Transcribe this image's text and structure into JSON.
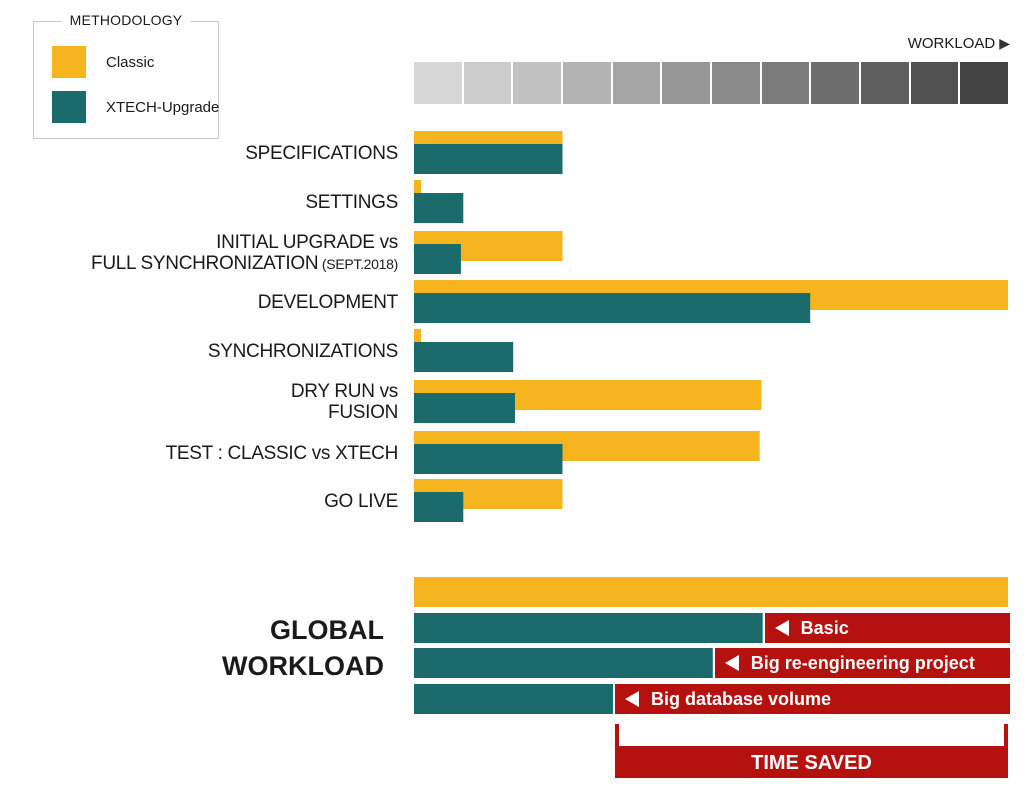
{
  "legend": {
    "title": "METHODOLOGY",
    "items": [
      {
        "label": "Classic",
        "color": "#f6b51e"
      },
      {
        "label": "XTECH-Upgrade",
        "color": "#1b6a6c"
      }
    ]
  },
  "workload_axis": {
    "label": "WORKLOAD",
    "arrow_icon": "arrow-right-icon",
    "gradient_colors": [
      "#d7d7d7",
      "#cccccc",
      "#c1c1c1",
      "#b3b3b3",
      "#a5a5a5",
      "#979797",
      "#898989",
      "#7b7b7b",
      "#6d6d6d",
      "#5f5f5f",
      "#515151",
      "#434343"
    ]
  },
  "chart_data": {
    "type": "bar",
    "orientation": "horizontal",
    "x_axis_label": "WORKLOAD",
    "value_scale": "relative workload (Classic development = 100)",
    "categories": [
      {
        "id": "specifications",
        "lines": [
          "SPECIFICATIONS"
        ]
      },
      {
        "id": "settings",
        "lines": [
          "SETTINGS"
        ]
      },
      {
        "id": "initial-upgrade",
        "lines": [
          "INITIAL UPGRADE vs",
          "FULL SYNCHRONIZATION (SEPT.2018)"
        ]
      },
      {
        "id": "development",
        "lines": [
          "DEVELOPMENT"
        ]
      },
      {
        "id": "synchronizations",
        "lines": [
          "SYNCHRONIZATIONS"
        ]
      },
      {
        "id": "dry-run",
        "lines": [
          "DRY RUN vs",
          "FUSION"
        ]
      },
      {
        "id": "test",
        "lines": [
          "TEST : CLASSIC vs XTECH"
        ]
      },
      {
        "id": "go-live",
        "lines": [
          "GO LIVE"
        ]
      }
    ],
    "series": [
      {
        "name": "Classic",
        "color": "#f6b51e",
        "values": [
          25,
          1.2,
          25,
          100,
          1.2,
          58.5,
          58.2,
          25
        ]
      },
      {
        "name": "XTECH-Upgrade",
        "color": "#1b6a6c",
        "values": [
          25,
          8.3,
          7.9,
          66.7,
          16.7,
          17,
          25,
          8.3
        ]
      }
    ],
    "global_workload": {
      "title_lines": [
        "GLOBAL",
        "WORKLOAD"
      ],
      "classic": 100,
      "scenarios": [
        {
          "label": "Basic",
          "xtech": 58.7
        },
        {
          "label": "Big re-engineering project",
          "xtech": 50.3
        },
        {
          "label": "Big database volume",
          "xtech": 33.5
        }
      ],
      "time_saved_label": "TIME SAVED"
    },
    "xlim": [
      0,
      100
    ],
    "grid": false,
    "legend_position": "top-left"
  }
}
